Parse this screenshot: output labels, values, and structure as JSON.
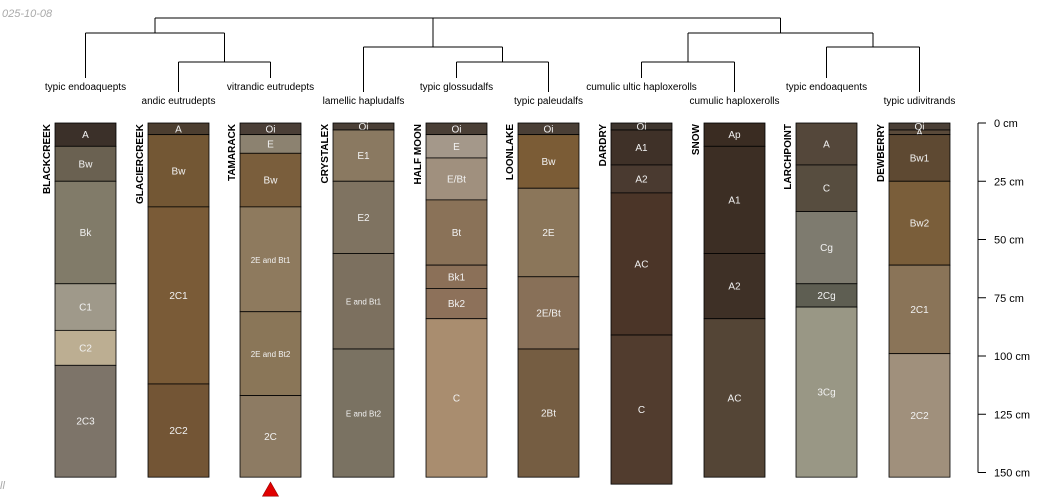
{
  "header_date": "025-10-08",
  "footer_mark": "ll",
  "depth_axis": {
    "unit": "cm",
    "max_depth": 150,
    "ticks": [
      {
        "value": 0,
        "label": "0 cm"
      },
      {
        "value": 25,
        "label": "25 cm"
      },
      {
        "value": 50,
        "label": "50 cm"
      },
      {
        "value": 75,
        "label": "75 cm"
      },
      {
        "value": 100,
        "label": "100 cm"
      },
      {
        "value": 125,
        "label": "125 cm"
      },
      {
        "value": 150,
        "label": "150 cm"
      }
    ]
  },
  "profiles": [
    {
      "name": "BLACKCREEK",
      "taxon": "typic endoaquepts",
      "horizons": [
        {
          "name": "A",
          "top": 0,
          "bottom": 10,
          "color": "#3b3029"
        },
        {
          "name": "Bw",
          "top": 10,
          "bottom": 25,
          "color": "#6a6151"
        },
        {
          "name": "Bk",
          "top": 25,
          "bottom": 69,
          "color": "#817b69"
        },
        {
          "name": "C1",
          "top": 69,
          "bottom": 89,
          "color": "#9f998a"
        },
        {
          "name": "C2",
          "top": 89,
          "bottom": 104,
          "color": "#bcae92"
        },
        {
          "name": "2C3",
          "top": 104,
          "bottom": 152,
          "color": "#7d7469"
        }
      ]
    },
    {
      "name": "GLACIERCREEK",
      "taxon": "andic eutrudepts",
      "horizons": [
        {
          "name": "A",
          "top": 0,
          "bottom": 5,
          "color": "#4c3e30"
        },
        {
          "name": "Bw",
          "top": 5,
          "bottom": 36,
          "color": "#735734"
        },
        {
          "name": "2C1",
          "top": 36,
          "bottom": 112,
          "color": "#7a5b37"
        },
        {
          "name": "2C2",
          "top": 112,
          "bottom": 152,
          "color": "#735535"
        }
      ]
    },
    {
      "name": "TAMARACK",
      "taxon": "vitrandic eutrudepts",
      "horizons": [
        {
          "name": "Oi",
          "top": 0,
          "bottom": 5,
          "color": "#4b3f37"
        },
        {
          "name": "E",
          "top": 5,
          "bottom": 13,
          "color": "#8c8270"
        },
        {
          "name": "Bw",
          "top": 13,
          "bottom": 36,
          "color": "#7a5e3c"
        },
        {
          "name": "2E and Bt1",
          "top": 36,
          "bottom": 81,
          "color": "#8e7a5e"
        },
        {
          "name": "2E and Bt2",
          "top": 81,
          "bottom": 117,
          "color": "#8a7658"
        },
        {
          "name": "2C",
          "top": 117,
          "bottom": 152,
          "color": "#8d7b63"
        }
      ]
    },
    {
      "name": "CRYSTALEX",
      "taxon": "lamellic hapludalfs",
      "horizons": [
        {
          "name": "Oi",
          "top": 0,
          "bottom": 3,
          "color": "#4a3f36"
        },
        {
          "name": "E1",
          "top": 3,
          "bottom": 25,
          "color": "#8a7961"
        },
        {
          "name": "E2",
          "top": 25,
          "bottom": 56,
          "color": "#7f7361"
        },
        {
          "name": "E and Bt1",
          "top": 56,
          "bottom": 97,
          "color": "#7c705f"
        },
        {
          "name": "E and Bt2",
          "top": 97,
          "bottom": 152,
          "color": "#7a7262"
        }
      ]
    },
    {
      "name": "HALF MOON",
      "taxon": "typic glossudalfs",
      "horizons": [
        {
          "name": "Oi",
          "top": 0,
          "bottom": 5,
          "color": "#4a3f36"
        },
        {
          "name": "E",
          "top": 5,
          "bottom": 15,
          "color": "#a4988a"
        },
        {
          "name": "E/Bt",
          "top": 15,
          "bottom": 33,
          "color": "#a0907e"
        },
        {
          "name": "Bt",
          "top": 33,
          "bottom": 61,
          "color": "#8a7258"
        },
        {
          "name": "Bk1",
          "top": 61,
          "bottom": 71,
          "color": "#8b7058"
        },
        {
          "name": "Bk2",
          "top": 71,
          "bottom": 84,
          "color": "#8d715a"
        },
        {
          "name": "C",
          "top": 84,
          "bottom": 152,
          "color": "#a98d6f"
        }
      ]
    },
    {
      "name": "LOONLAKE",
      "taxon": "typic paleudalfs",
      "horizons": [
        {
          "name": "Oi",
          "top": 0,
          "bottom": 5,
          "color": "#4a3f36"
        },
        {
          "name": "Bw",
          "top": 5,
          "bottom": 28,
          "color": "#7b5c36"
        },
        {
          "name": "2E",
          "top": 28,
          "bottom": 66,
          "color": "#8b765a"
        },
        {
          "name": "2E/Bt",
          "top": 66,
          "bottom": 97,
          "color": "#887058"
        },
        {
          "name": "2Bt",
          "top": 97,
          "bottom": 152,
          "color": "#755d42"
        }
      ]
    },
    {
      "name": "DARDRY",
      "taxon": "cumulic ultic haploxerolls",
      "horizons": [
        {
          "name": "Oi",
          "top": 0,
          "bottom": 3,
          "color": "#3e352e"
        },
        {
          "name": "A1",
          "top": 3,
          "bottom": 18,
          "color": "#3f3128"
        },
        {
          "name": "A2",
          "top": 18,
          "bottom": 30,
          "color": "#4a3a30"
        },
        {
          "name": "AC",
          "top": 30,
          "bottom": 91,
          "color": "#4b3528"
        },
        {
          "name": "C",
          "top": 91,
          "bottom": 155,
          "color": "#513c2e"
        }
      ]
    },
    {
      "name": "SNOW",
      "taxon": "cumulic haploxerolls",
      "horizons": [
        {
          "name": "Ap",
          "top": 0,
          "bottom": 10,
          "color": "#3a2c22"
        },
        {
          "name": "A1",
          "top": 10,
          "bottom": 56,
          "color": "#3c2e24"
        },
        {
          "name": "A2",
          "top": 56,
          "bottom": 84,
          "color": "#3e3026"
        },
        {
          "name": "AC",
          "top": 84,
          "bottom": 152,
          "color": "#544536"
        }
      ]
    },
    {
      "name": "LARCHPOINT",
      "taxon": "typic endoaquents",
      "horizons": [
        {
          "name": "A",
          "top": 0,
          "bottom": 18,
          "color": "#54473a"
        },
        {
          "name": "C",
          "top": 18,
          "bottom": 38,
          "color": "#574d3f"
        },
        {
          "name": "Cg",
          "top": 38,
          "bottom": 69,
          "color": "#7e7b6f"
        },
        {
          "name": "2Cg",
          "top": 69,
          "bottom": 79,
          "color": "#5e5e52"
        },
        {
          "name": "3Cg",
          "top": 79,
          "bottom": 152,
          "color": "#999785"
        }
      ]
    },
    {
      "name": "DEWBERRY",
      "taxon": "typic udivitrands",
      "horizons": [
        {
          "name": "Oi",
          "top": 0,
          "bottom": 3,
          "color": "#4a3f36"
        },
        {
          "name": "A",
          "top": 3,
          "bottom": 5,
          "color": "#5a4a3a"
        },
        {
          "name": "Bw1",
          "top": 5,
          "bottom": 25,
          "color": "#5e4932"
        },
        {
          "name": "Bw2",
          "top": 25,
          "bottom": 61,
          "color": "#7a5e3a"
        },
        {
          "name": "2C1",
          "top": 61,
          "bottom": 99,
          "color": "#8a7458"
        },
        {
          "name": "2C2",
          "top": 99,
          "bottom": 152,
          "color": "#a0907c"
        }
      ]
    }
  ],
  "marker": {
    "profile": "TAMARACK",
    "shape": "triangle-up",
    "color": "#e00000"
  }
}
